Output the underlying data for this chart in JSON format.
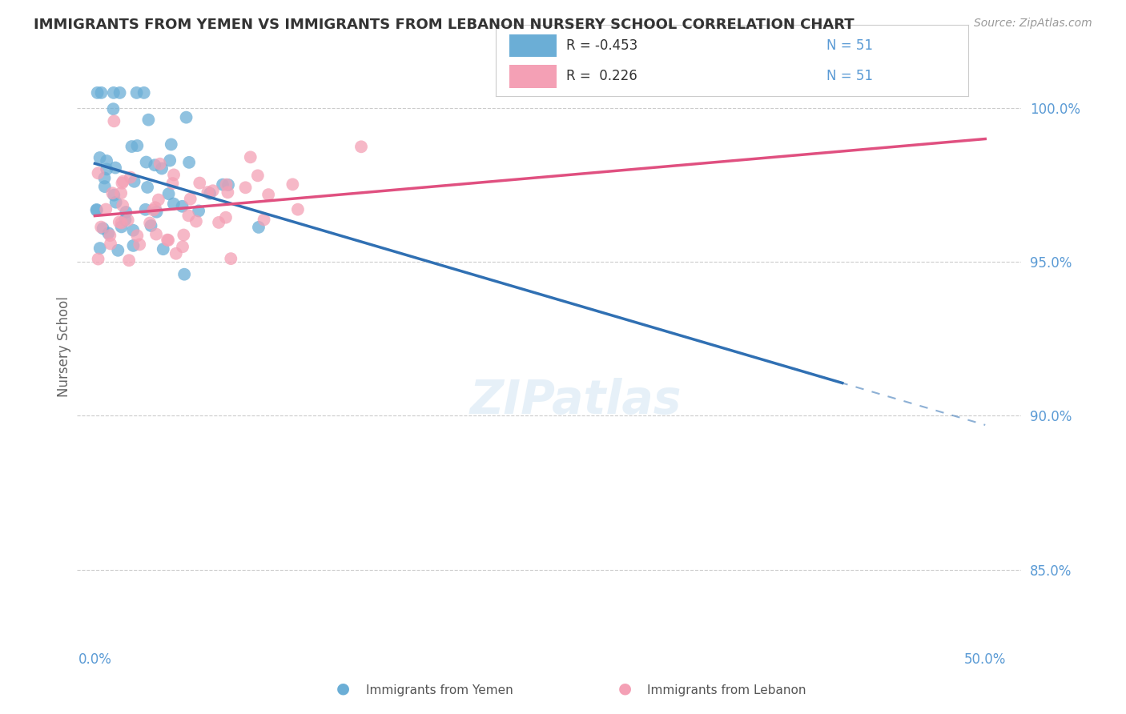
{
  "title": "IMMIGRANTS FROM YEMEN VS IMMIGRANTS FROM LEBANON NURSERY SCHOOL CORRELATION CHART",
  "source": "Source: ZipAtlas.com",
  "ylabel": "Nursery School",
  "yticks": [
    85.0,
    90.0,
    95.0,
    100.0
  ],
  "ytick_labels": [
    "85.0%",
    "90.0%",
    "95.0%",
    "100.0%"
  ],
  "legend_r_yemen": "R = -0.453",
  "legend_r_lebanon": "R =  0.226",
  "legend_n": "N = 51",
  "legend_label_yemen": "Immigrants from Yemen",
  "legend_label_lebanon": "Immigrants from Lebanon",
  "yemen_color": "#6baed6",
  "lebanon_color": "#f4a0b5",
  "yemen_line_color": "#3070b3",
  "lebanon_line_color": "#e05080",
  "watermark": "ZIPatlas",
  "background_color": "#ffffff",
  "title_color": "#333333",
  "axis_label_color": "#5b9bd5",
  "right_tick_color": "#5b9bd5"
}
